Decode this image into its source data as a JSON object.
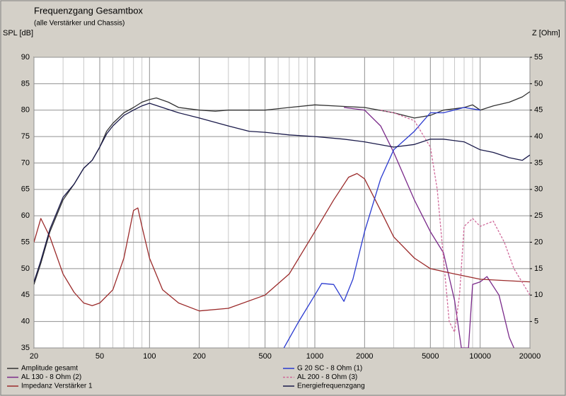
{
  "chart_data": {
    "type": "line",
    "title": "Frequenzgang Gesamtbox",
    "subtitle": "(alle Verstärker und Chassis)",
    "ylabel": "SPL [dB]",
    "y2label": "Z [Ohm]",
    "xscale": "log",
    "grid": true,
    "xlim": [
      20,
      20000
    ],
    "xticks": [
      20,
      50,
      100,
      200,
      500,
      1000,
      2000,
      5000,
      10000,
      20000
    ],
    "xminorticks": [
      30,
      40,
      60,
      70,
      80,
      90,
      300,
      400,
      600,
      700,
      800,
      900,
      3000,
      4000,
      6000,
      7000,
      8000,
      9000
    ],
    "ylim": [
      35,
      90
    ],
    "yticks": [
      35,
      40,
      45,
      50,
      55,
      60,
      65,
      70,
      75,
      80,
      85,
      90
    ],
    "y2lim": [
      0,
      55
    ],
    "y2ticks": [
      5,
      10,
      15,
      20,
      25,
      30,
      35,
      40,
      45,
      50,
      55
    ],
    "series": [
      {
        "name": "Amplitude gesamt",
        "color": "#333333",
        "x": [
          20,
          22,
          25,
          30,
          35,
          40,
          45,
          50,
          55,
          60,
          70,
          80,
          90,
          100,
          110,
          130,
          150,
          200,
          250,
          300,
          400,
          500,
          700,
          1000,
          1500,
          2000,
          3000,
          4000,
          5000,
          6000,
          8000,
          9000,
          10000,
          12000,
          15000,
          18000,
          20000
        ],
        "values": [
          47,
          51,
          57,
          63,
          66,
          69,
          70.5,
          73,
          76,
          77.5,
          79.5,
          80.5,
          81.5,
          82,
          82.3,
          81.5,
          80.5,
          80,
          79.8,
          80,
          80,
          80,
          80.5,
          81,
          80.7,
          80.5,
          79.5,
          78.5,
          79,
          80,
          80.5,
          81,
          80,
          80.8,
          81.5,
          82.5,
          83.5
        ]
      },
      {
        "name": "AL 130 - 8 Ohm (2)",
        "color": "#7a2a8a",
        "x": [
          1500,
          2000,
          2500,
          3000,
          4000,
          5000,
          6000,
          7000,
          7700,
          8500,
          9000,
          10000,
          11000,
          13000,
          15000,
          16000
        ],
        "values": [
          80.5,
          80,
          77,
          72,
          63,
          57,
          53,
          44,
          35,
          35,
          47,
          47.5,
          48.5,
          45,
          37,
          35
        ]
      },
      {
        "name": "Impedanz Verstärker 1",
        "color": "#9b2a2a",
        "axis": "y2",
        "x": [
          20,
          22,
          25,
          30,
          35,
          40,
          45,
          50,
          60,
          70,
          80,
          85,
          90,
          100,
          120,
          150,
          200,
          300,
          500,
          700,
          1000,
          1300,
          1600,
          1800,
          2000,
          2500,
          3000,
          4000,
          5000,
          7000,
          10000,
          20000
        ],
        "values": [
          20,
          24.5,
          21,
          14,
          10.5,
          8.5,
          8,
          8.5,
          11,
          17,
          26,
          26.5,
          23,
          17,
          11,
          8.5,
          7,
          7.5,
          10,
          14,
          22,
          28,
          32.3,
          33,
          32,
          26,
          21,
          17,
          15,
          14,
          13,
          12.5
        ]
      },
      {
        "name": "G 20 SC - 8 Ohm (1)",
        "color": "#2a3ad0",
        "x": [
          650,
          800,
          1000,
          1100,
          1300,
          1500,
          1700,
          2000,
          2500,
          3000,
          4000,
          5000,
          6000,
          8000,
          10000
        ],
        "values": [
          35,
          40,
          45,
          47.2,
          47,
          43.8,
          48,
          57,
          67,
          72.5,
          76,
          79.5,
          79.5,
          80.5,
          80
        ]
      },
      {
        "name": "AL 200 - 8 Ohm (3)",
        "color": "#d06a9a",
        "dash": true,
        "x": [
          2500,
          3000,
          4000,
          5000,
          5500,
          6000,
          6500,
          7000,
          7500,
          8000,
          9000,
          10000,
          12000,
          14000,
          16000,
          20000
        ],
        "values": [
          80,
          79.5,
          78,
          73,
          65,
          52,
          40,
          38,
          45,
          58,
          59.5,
          58,
          59,
          55,
          50,
          45
        ]
      },
      {
        "name": "Energiefrequenzgang",
        "color": "#1a1a4a",
        "x": [
          20,
          22,
          25,
          30,
          35,
          40,
          45,
          50,
          55,
          60,
          70,
          80,
          90,
          100,
          150,
          200,
          300,
          400,
          500,
          700,
          1000,
          1500,
          2000,
          3000,
          4000,
          5000,
          6000,
          8000,
          10000,
          12000,
          15000,
          18000,
          20000
        ],
        "values": [
          47.5,
          51.5,
          57.5,
          63.5,
          66,
          69,
          70.5,
          73,
          75.5,
          77,
          79,
          80,
          80.8,
          81.3,
          79.5,
          78.5,
          77,
          76,
          75.8,
          75.3,
          75,
          74.5,
          74,
          73,
          73.5,
          74.5,
          74.5,
          74,
          72.5,
          72,
          71,
          70.5,
          71.5
        ]
      }
    ]
  }
}
